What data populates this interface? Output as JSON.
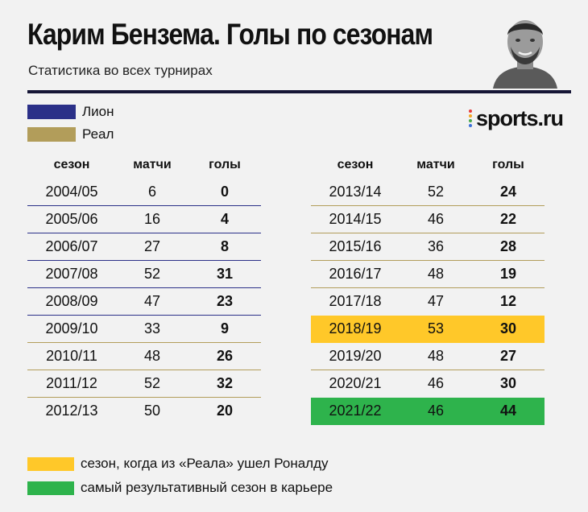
{
  "header": {
    "title": "Карим Бензема. Голы по сезонам",
    "subtitle": "Статистика во всех турнирах"
  },
  "logo": {
    "text": "sports.ru"
  },
  "legend": [
    {
      "label": "Лион",
      "color": "#2b3088"
    },
    {
      "label": "Реал",
      "color": "#b29d5a"
    }
  ],
  "columns": {
    "season": "сезон",
    "matches": "матчи",
    "goals": "голы"
  },
  "left_rows": [
    {
      "season": "2004/05",
      "matches": "6",
      "goals": "0",
      "club": "lyon"
    },
    {
      "season": "2005/06",
      "matches": "16",
      "goals": "4",
      "club": "lyon"
    },
    {
      "season": "2006/07",
      "matches": "27",
      "goals": "8",
      "club": "lyon"
    },
    {
      "season": "2007/08",
      "matches": "52",
      "goals": "31",
      "club": "lyon"
    },
    {
      "season": "2008/09",
      "matches": "47",
      "goals": "23",
      "club": "lyon"
    },
    {
      "season": "2009/10",
      "matches": "33",
      "goals": "9",
      "club": "real"
    },
    {
      "season": "2010/11",
      "matches": "48",
      "goals": "26",
      "club": "real"
    },
    {
      "season": "2011/12",
      "matches": "52",
      "goals": "32",
      "club": "real"
    },
    {
      "season": "2012/13",
      "matches": "50",
      "goals": "20",
      "club": "none"
    }
  ],
  "right_rows": [
    {
      "season": "2013/14",
      "matches": "52",
      "goals": "24",
      "club": "real"
    },
    {
      "season": "2014/15",
      "matches": "46",
      "goals": "22",
      "club": "real"
    },
    {
      "season": "2015/16",
      "matches": "36",
      "goals": "28",
      "club": "real"
    },
    {
      "season": "2016/17",
      "matches": "48",
      "goals": "19",
      "club": "real"
    },
    {
      "season": "2017/18",
      "matches": "47",
      "goals": "12",
      "club": "none"
    },
    {
      "season": "2018/19",
      "matches": "53",
      "goals": "30",
      "club": "hl-yellow"
    },
    {
      "season": "2019/20",
      "matches": "48",
      "goals": "27",
      "club": "real"
    },
    {
      "season": "2020/21",
      "matches": "46",
      "goals": "30",
      "club": "none"
    },
    {
      "season": "2021/22",
      "matches": "46",
      "goals": "44",
      "club": "hl-green"
    }
  ],
  "notes": [
    {
      "label": "сезон, когда из «Реала» ушел Роналду",
      "color": "#ffc829"
    },
    {
      "label": "самый результативный сезон в карьере",
      "color": "#2eb34c"
    }
  ]
}
